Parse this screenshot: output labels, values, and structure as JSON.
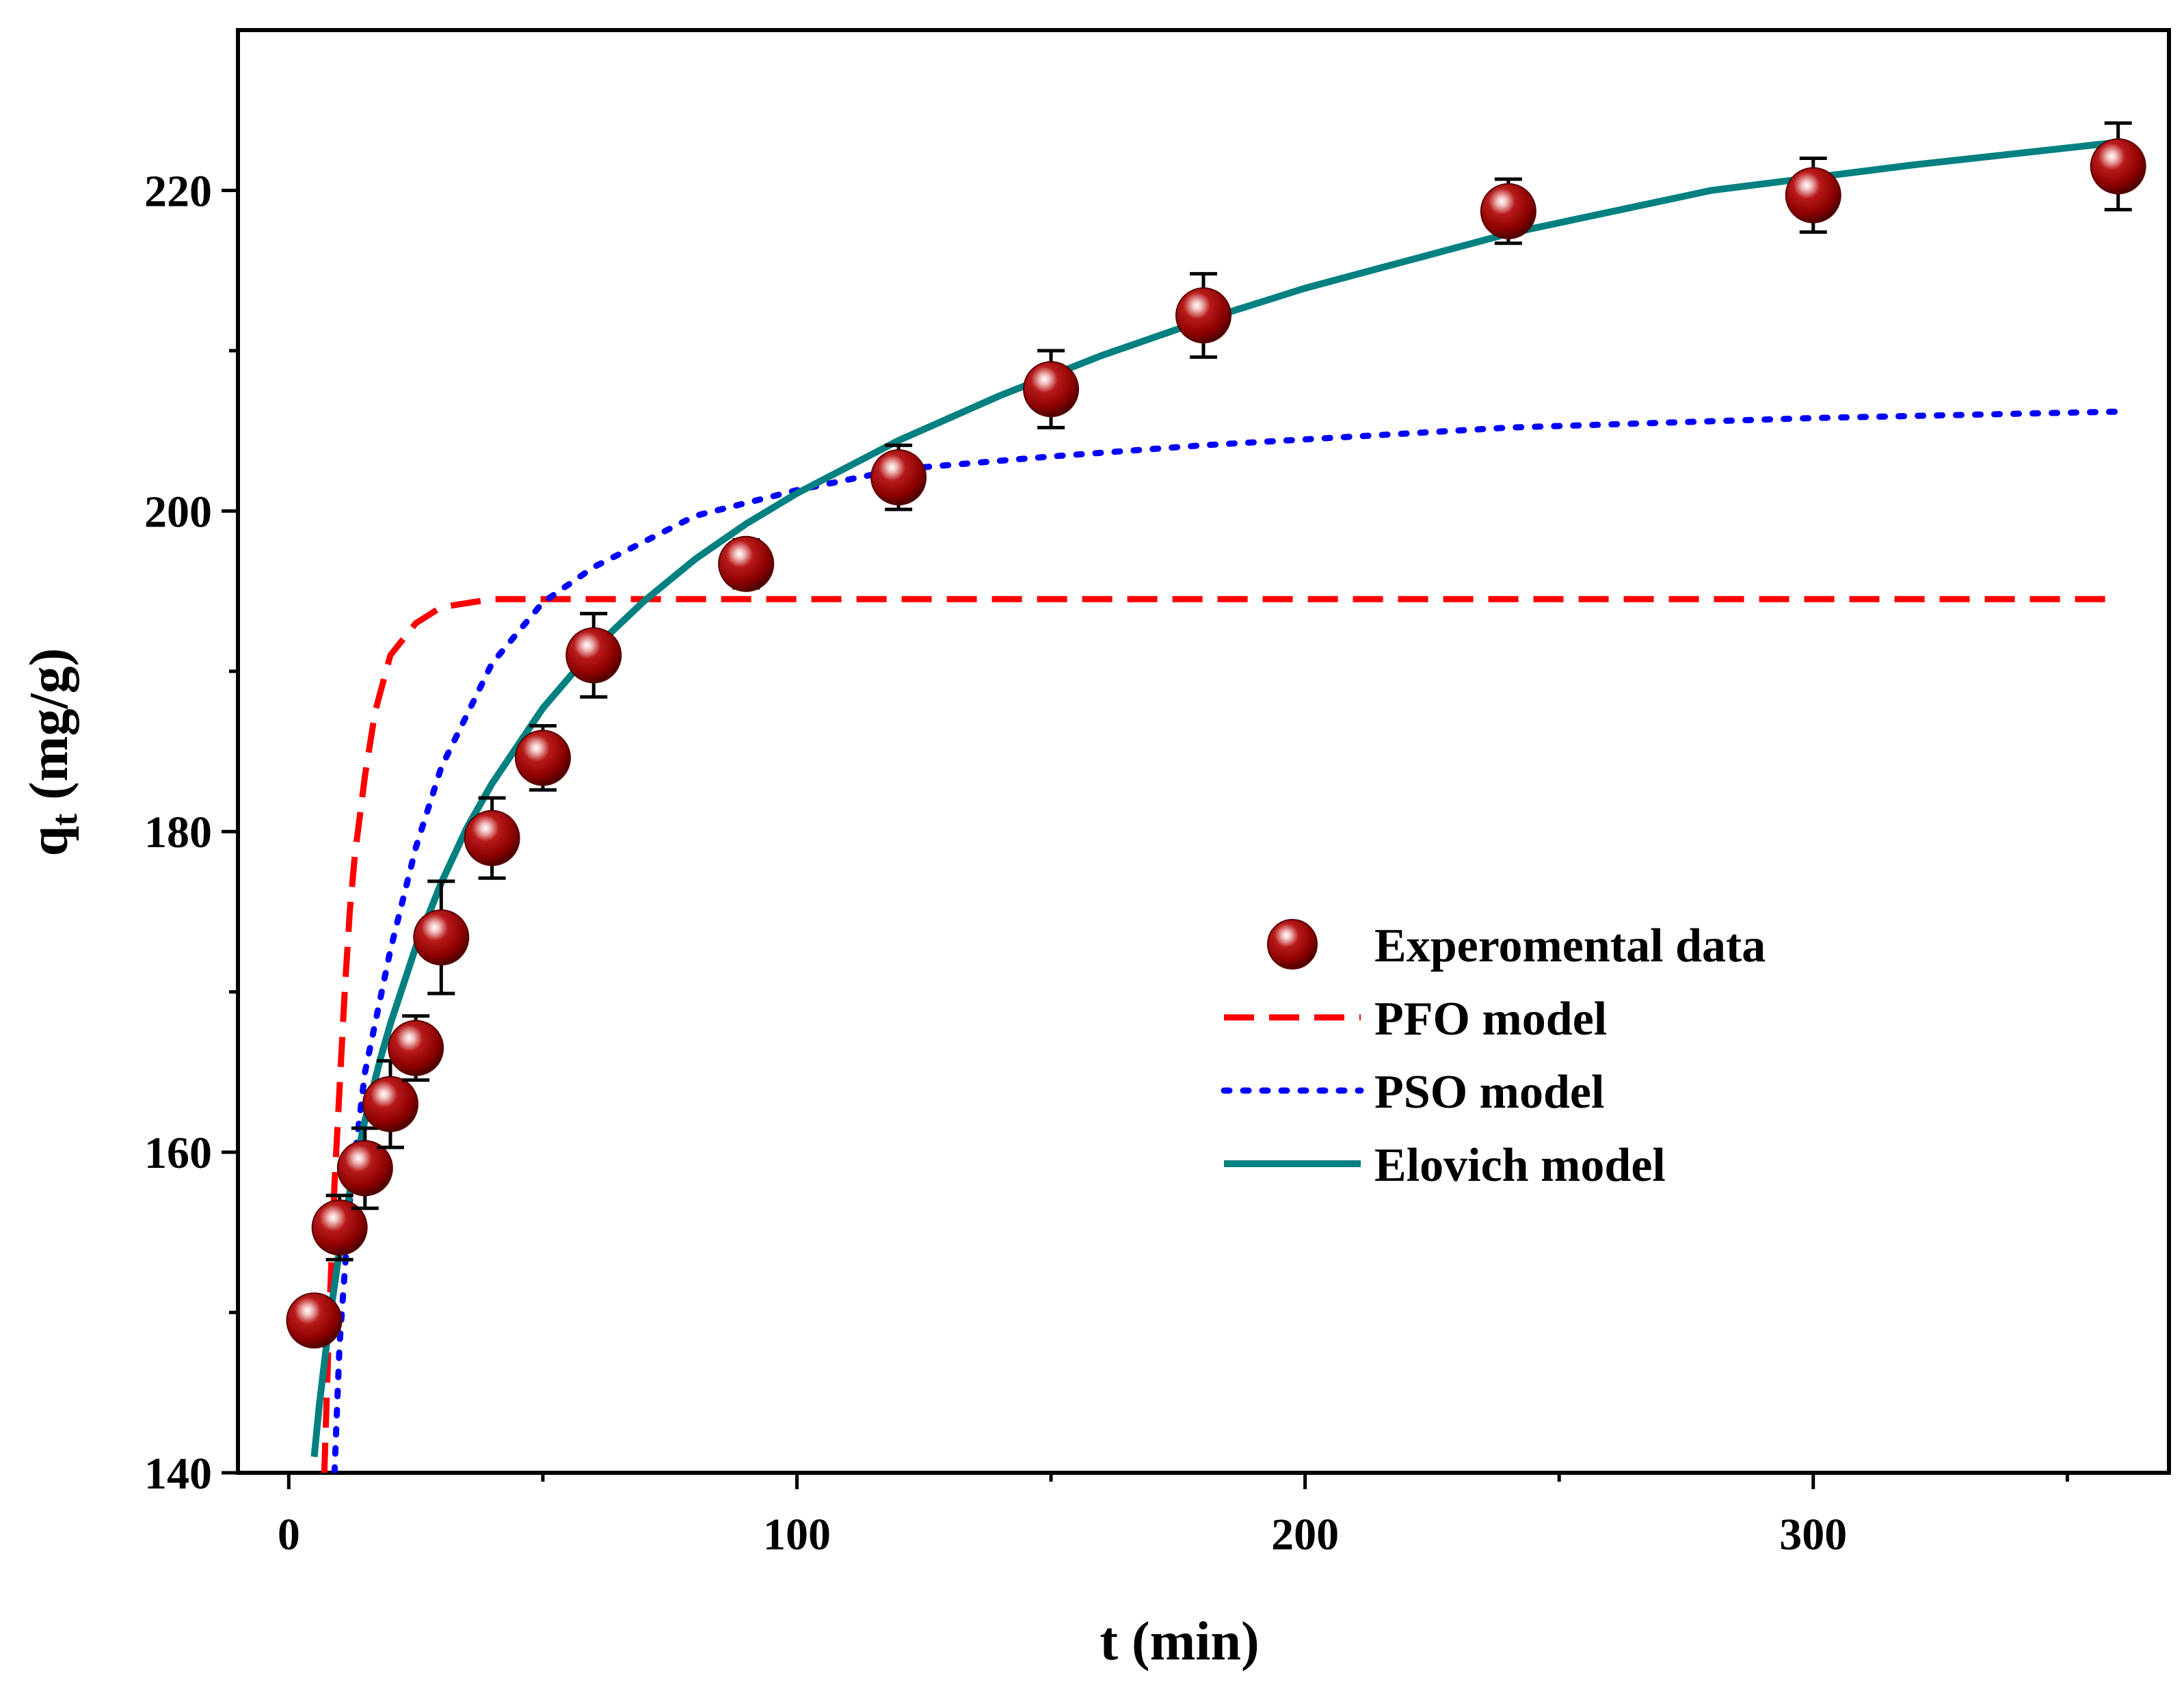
{
  "chart_data": {
    "type": "scatter",
    "title": "",
    "xlabel": "t (min)",
    "ylabel_main": "q",
    "ylabel_sub": "t",
    "ylabel_unit": " (mg/g)",
    "xlim": [
      -10,
      370
    ],
    "ylim": [
      140,
      230
    ],
    "x_ticks": [
      0,
      100,
      200,
      300
    ],
    "x_tick_labels": [
      "0",
      "100",
      "200",
      "300"
    ],
    "x_minor_ticks": [
      50,
      150,
      250,
      350
    ],
    "y_ticks": [
      140,
      160,
      180,
      200,
      220
    ],
    "y_tick_labels": [
      "140",
      "160",
      "180",
      "200",
      "220"
    ],
    "y_minor_ticks": [
      150,
      170,
      190,
      210
    ],
    "grid": false,
    "legend_position": "center-right",
    "experimental": {
      "name": "Experomental data",
      "color": "#8B0000",
      "points": [
        {
          "x": 5,
          "y": 149.5,
          "err": 1.0
        },
        {
          "x": 10,
          "y": 155.3,
          "err": 2.0
        },
        {
          "x": 15,
          "y": 159.0,
          "err": 2.5
        },
        {
          "x": 20,
          "y": 163.0,
          "err": 2.7
        },
        {
          "x": 25,
          "y": 166.5,
          "err": 2.0
        },
        {
          "x": 30,
          "y": 173.4,
          "err": 3.5
        },
        {
          "x": 40,
          "y": 179.6,
          "err": 2.5
        },
        {
          "x": 50,
          "y": 184.6,
          "err": 2.0
        },
        {
          "x": 60,
          "y": 191.0,
          "err": 2.6
        },
        {
          "x": 90,
          "y": 196.7,
          "err": 1.5
        },
        {
          "x": 120,
          "y": 202.1,
          "err": 2.0
        },
        {
          "x": 150,
          "y": 207.6,
          "err": 2.4
        },
        {
          "x": 180,
          "y": 212.2,
          "err": 2.6
        },
        {
          "x": 240,
          "y": 218.7,
          "err": 2.0
        },
        {
          "x": 300,
          "y": 219.7,
          "err": 2.3
        },
        {
          "x": 360,
          "y": 221.5,
          "err": 2.7
        }
      ]
    },
    "series": [
      {
        "name": "PFO model",
        "style": "dashed",
        "color": "#FF0000",
        "x": [
          7,
          8,
          9,
          10,
          11,
          12,
          13,
          15,
          17,
          20,
          25,
          30,
          40,
          60,
          100,
          200,
          300,
          360
        ],
        "y": [
          140,
          150,
          158,
          164,
          170,
          175,
          178.5,
          183.5,
          187.5,
          191,
          193,
          194,
          194.5,
          194.5,
          194.5,
          194.5,
          194.5,
          194.5
        ]
      },
      {
        "name": "PSO model",
        "style": "dotted",
        "color": "#0000FF",
        "x": [
          9,
          10,
          12,
          15,
          20,
          25,
          30,
          40,
          50,
          60,
          80,
          100,
          120,
          150,
          180,
          240,
          300,
          360
        ],
        "y": [
          140,
          148,
          157,
          165,
          172.6,
          179,
          184,
          190.5,
          194.3,
          196.5,
          199.7,
          201.3,
          202.6,
          203.4,
          204.1,
          205.2,
          205.8,
          206.2
        ]
      },
      {
        "name": "Elovich model",
        "style": "solid",
        "color": "#008080",
        "x": [
          5,
          6,
          8,
          10,
          12,
          15,
          18,
          20,
          25,
          30,
          35,
          40,
          50,
          60,
          70,
          80,
          90,
          100,
          120,
          140,
          160,
          180,
          200,
          240,
          280,
          320,
          360
        ],
        "y": [
          141,
          144.2,
          149.5,
          153.9,
          157.5,
          162,
          165.8,
          168,
          172.8,
          176.8,
          180.2,
          183,
          187.7,
          191.4,
          194.4,
          197,
          199.2,
          201.1,
          204.4,
          207.2,
          209.7,
          211.9,
          213.9,
          217.3,
          220.0,
          221.6,
          223
        ]
      }
    ]
  }
}
